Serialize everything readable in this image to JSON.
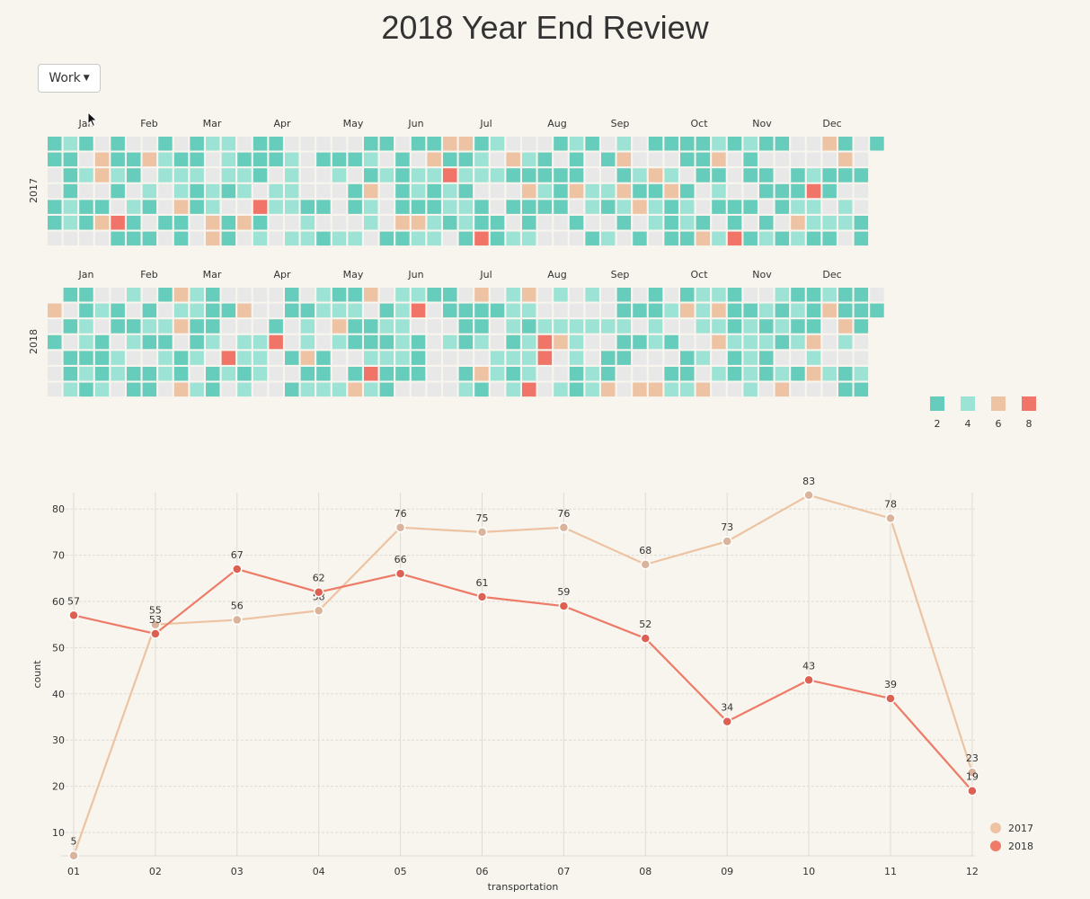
{
  "page": {
    "title": "2018 Year End Review"
  },
  "filter": {
    "selected": "Work"
  },
  "heatmap": {
    "months": [
      "Jan",
      "Feb",
      "Mar",
      "Apr",
      "May",
      "Jun",
      "Jul",
      "Aug",
      "Sep",
      "Oct",
      "Nov",
      "Dec"
    ],
    "years": [
      "2017",
      "2018"
    ],
    "legend": {
      "values": [
        "2",
        "4",
        "6",
        "8"
      ],
      "colors": [
        "#66ccbb",
        "#9de3d5",
        "#eec3a3",
        "#f07467"
      ]
    },
    "empty_color": "#e8e8e8"
  },
  "chart_data": {
    "type": "line",
    "xlabel": "transportation",
    "ylabel": "count",
    "categories": [
      "01",
      "02",
      "03",
      "04",
      "05",
      "06",
      "07",
      "08",
      "09",
      "10",
      "11",
      "12"
    ],
    "yticks": [
      10,
      20,
      30,
      40,
      50,
      60,
      70,
      80
    ],
    "ylim": [
      5,
      83
    ],
    "legend_position": "bottom-right",
    "series": [
      {
        "name": "2017",
        "color": "#eec3a3",
        "marker": "#d9b49a",
        "values": [
          5,
          55,
          56,
          58,
          76,
          75,
          76,
          68,
          73,
          83,
          78,
          23
        ]
      },
      {
        "name": "2018",
        "color": "#ee7a68",
        "marker": "#dd6152",
        "values": [
          57,
          53,
          67,
          62,
          66,
          61,
          59,
          52,
          34,
          43,
          39,
          19
        ]
      }
    ],
    "data_labels": [
      [
        "5",
        "55",
        "56",
        "58",
        "76",
        "75",
        "76",
        "68",
        "73",
        "83",
        "78",
        "23"
      ],
      [
        "57",
        "53",
        "67",
        "62",
        "66",
        "61",
        "59",
        "52",
        "34",
        "43",
        "39",
        "19"
      ]
    ]
  }
}
